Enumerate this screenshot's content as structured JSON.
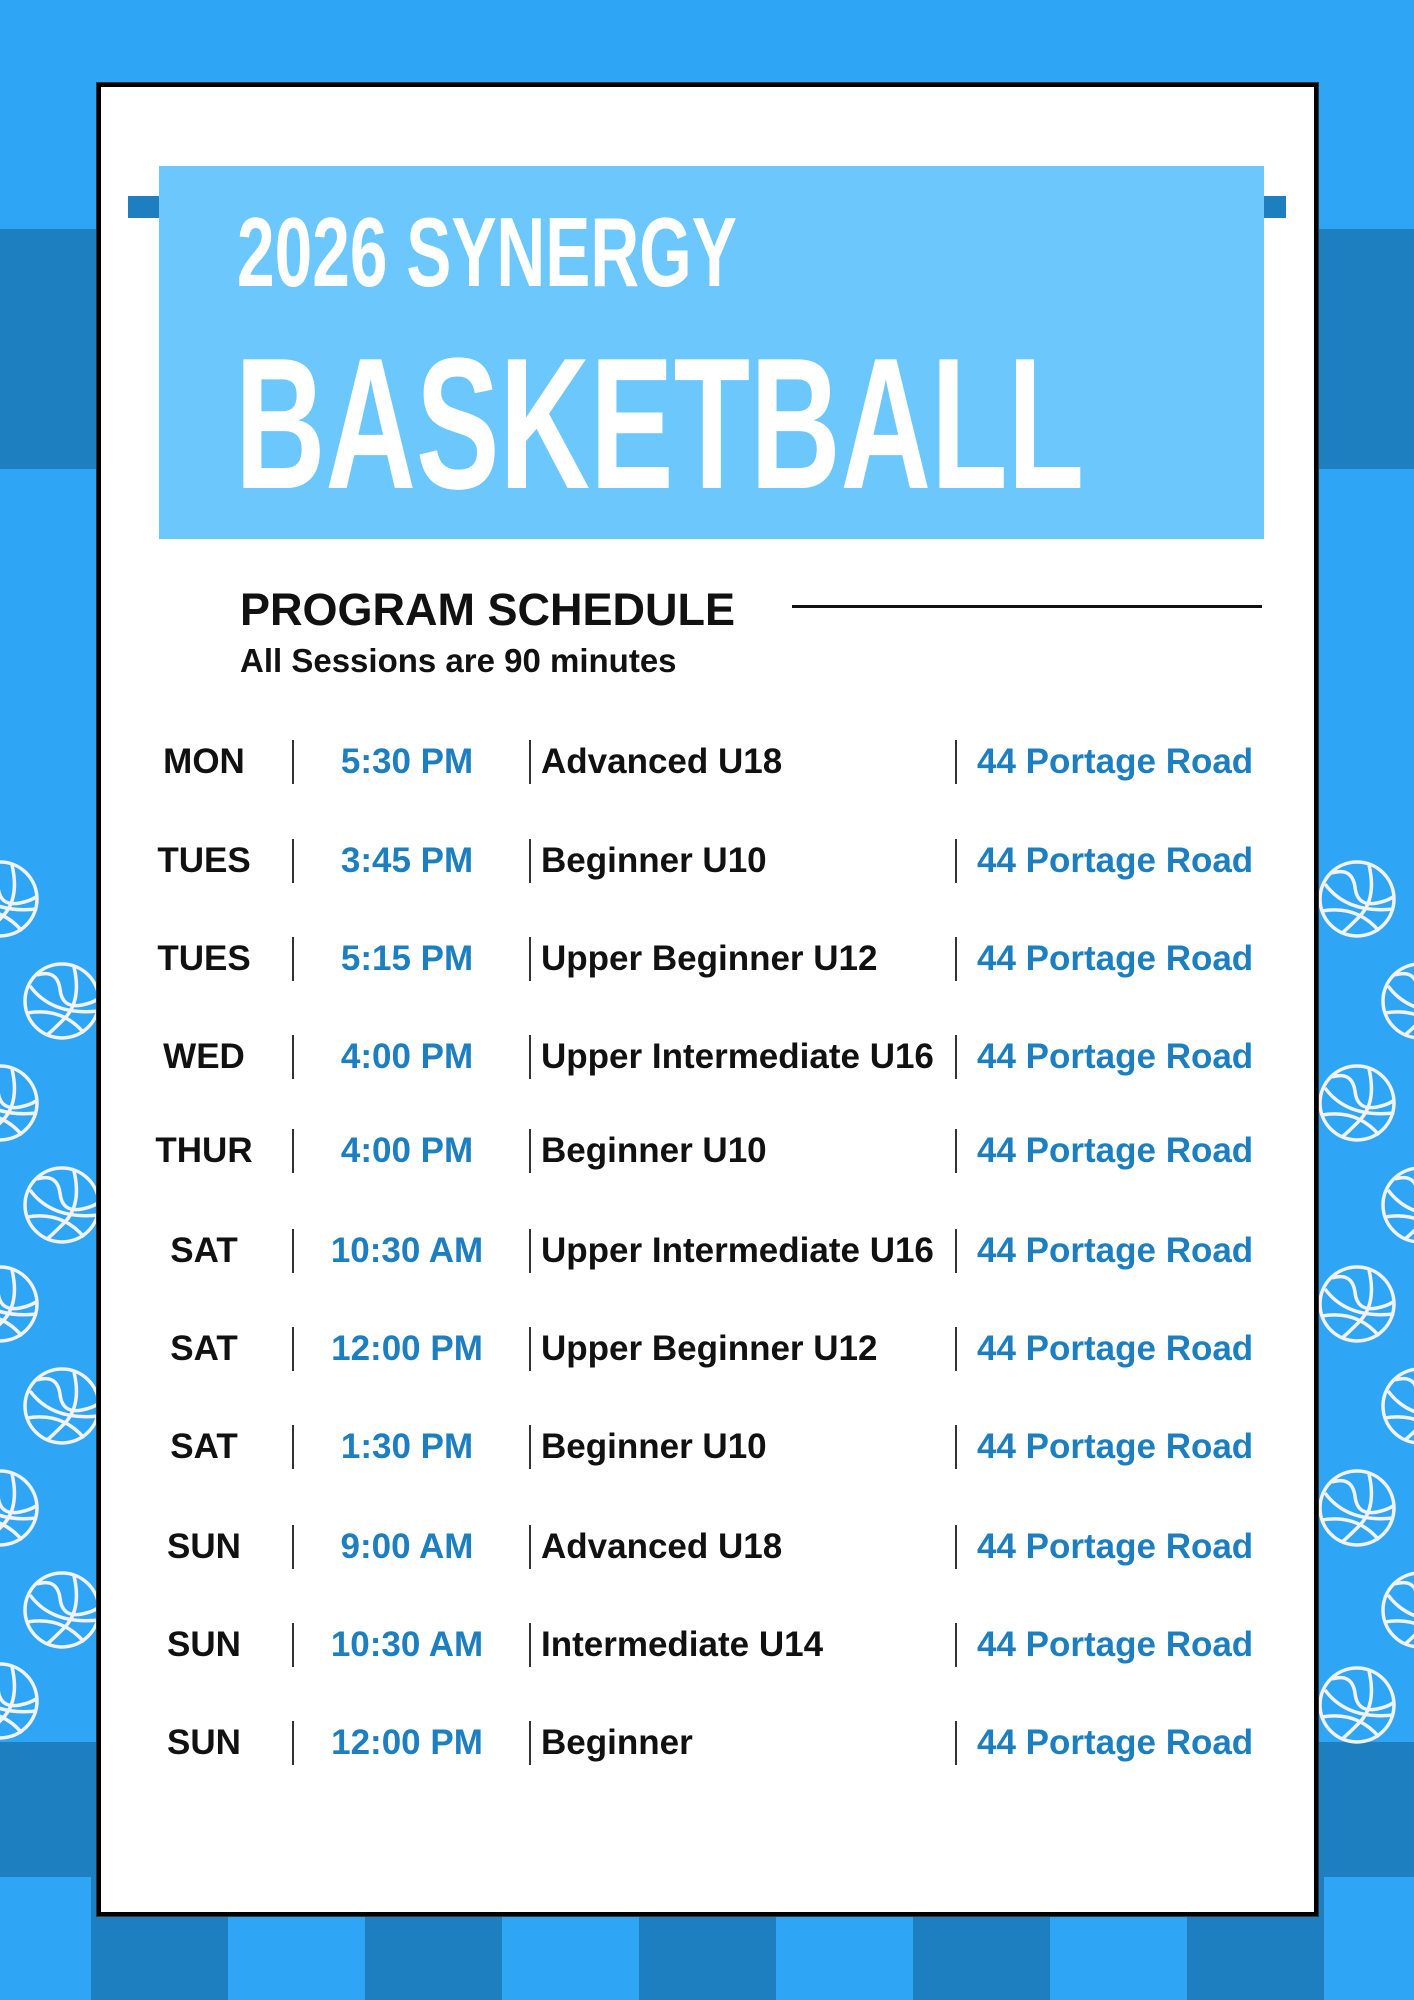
{
  "colors": {
    "background": "#2ea6f5",
    "dark_band": "#1d7fc0",
    "header_box": "#6cc7fd",
    "accent_text": "#1d7fc0",
    "text": "#111111"
  },
  "header": {
    "year_line": "2026 SYNERGY",
    "title": "BASKETBALL"
  },
  "schedule": {
    "heading": "PROGRAM SCHEDULE",
    "subheading": "All Sessions are 90 minutes",
    "rows": [
      {
        "day": "MON",
        "time": "5:30 PM",
        "program": "Advanced U18",
        "location": "44 Portage Road"
      },
      {
        "day": "TUES",
        "time": "3:45 PM",
        "program": "Beginner U10",
        "location": "44 Portage Road"
      },
      {
        "day": "TUES",
        "time": "5:15 PM",
        "program": "Upper Beginner U12",
        "location": "44 Portage Road"
      },
      {
        "day": "WED",
        "time": "4:00 PM",
        "program": "Upper Intermediate U16",
        "location": "44 Portage Road"
      },
      {
        "day": "THUR",
        "time": "4:00 PM",
        "program": "Beginner U10",
        "location": "44 Portage Road"
      },
      {
        "day": "SAT",
        "time": "10:30 AM",
        "program": "Upper Intermediate U16",
        "location": "44 Portage Road"
      },
      {
        "day": "SAT",
        "time": "12:00 PM",
        "program": "Upper Beginner U12",
        "location": "44 Portage Road"
      },
      {
        "day": "SAT",
        "time": "1:30 PM",
        "program": "Beginner U10",
        "location": "44 Portage Road"
      },
      {
        "day": "SUN",
        "time": "9:00 AM",
        "program": "Advanced U18",
        "location": "44 Portage Road"
      },
      {
        "day": "SUN",
        "time": "10:30 AM",
        "program": "Intermediate U14",
        "location": "44 Portage Road"
      },
      {
        "day": "SUN",
        "time": "12:00 PM",
        "program": "Beginner",
        "location": "44 Portage Road"
      }
    ]
  },
  "decor": {
    "pattern_icon": "basketball-icon"
  }
}
